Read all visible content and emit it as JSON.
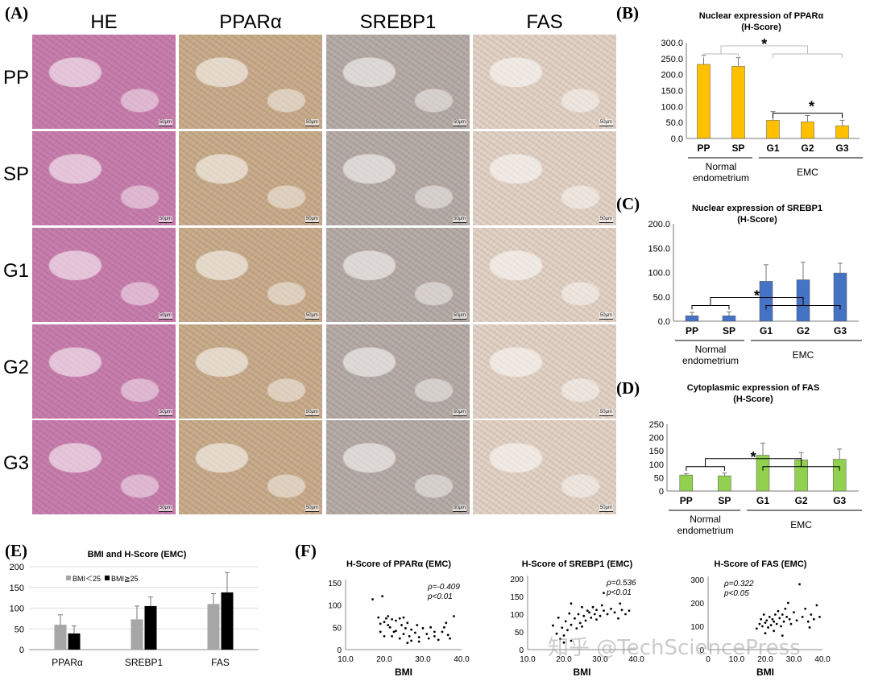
{
  "panelA": {
    "letter": "(A)",
    "columns": [
      "HE",
      "PPARα",
      "SREBP1",
      "FAS"
    ],
    "rows": [
      "PP",
      "SP",
      "G1",
      "G2",
      "G3"
    ],
    "scale_label": "50μm",
    "colors": {
      "HE": "#c97fae",
      "PPARα": "#c9ad8c",
      "SREBP1": "#b7aca7",
      "FAS": "#e3d3c6"
    }
  },
  "chart_data": [
    {
      "letter": "(B)",
      "type": "bar",
      "title": "Nuclear expression of PPARα",
      "subtitle": "(H-Score)",
      "categories": [
        "PP",
        "SP",
        "G1",
        "G2",
        "G3"
      ],
      "values": [
        232,
        226,
        57,
        52,
        40
      ],
      "errors": [
        28,
        27,
        27,
        20,
        17
      ],
      "ylim": [
        0,
        300
      ],
      "yticks": [
        "0.0",
        "50.0",
        "100.0",
        "150.0",
        "200.0",
        "250.0",
        "300.0"
      ],
      "color": "#ffc000",
      "groups": [
        {
          "label": "Normal endometrium",
          "label_lines": [
            "Normal",
            "endometrium"
          ]
        },
        {
          "label": "EMC",
          "label_lines": [
            "EMC"
          ]
        }
      ],
      "significance": "*"
    },
    {
      "letter": "(C)",
      "type": "bar",
      "title": "Nuclear expression of SREBP1",
      "subtitle": "(H-Score)",
      "categories": [
        "PP",
        "SP",
        "G1",
        "G2",
        "G3"
      ],
      "values": [
        11,
        11,
        82,
        85,
        99
      ],
      "errors": [
        7,
        8,
        34,
        36,
        20
      ],
      "ylim": [
        0,
        200
      ],
      "yticks": [
        "0.0",
        "50.0",
        "100.0",
        "150.0",
        "200.0"
      ],
      "color": "#4472c4",
      "groups": [
        {
          "label": "Normal endometrium",
          "label_lines": [
            "Normal",
            "endometrium"
          ]
        },
        {
          "label": "EMC",
          "label_lines": [
            "EMC"
          ]
        }
      ],
      "significance": "*"
    },
    {
      "letter": "(D)",
      "type": "bar",
      "title": "Cytoplasmic expression of FAS",
      "subtitle": "(H-Score)",
      "categories": [
        "PP",
        "SP",
        "G1",
        "G2",
        "G3"
      ],
      "values": [
        60,
        57,
        134,
        117,
        119
      ],
      "errors": [
        5,
        10,
        45,
        27,
        38
      ],
      "ylim": [
        0,
        250
      ],
      "yticks": [
        "0",
        "50",
        "100",
        "150",
        "200",
        "250"
      ],
      "color": "#92d050",
      "groups": [
        {
          "label": "Normal endometrium",
          "label_lines": [
            "Normal",
            "endometrium"
          ]
        },
        {
          "label": "EMC",
          "label_lines": [
            "EMC"
          ]
        }
      ],
      "significance": "*"
    },
    {
      "letter": "(E)",
      "type": "bar",
      "title": "BMI and H-Score (EMC)",
      "categories": [
        "PPARα",
        "SREBP1",
        "FAS"
      ],
      "series": [
        {
          "name": "BMI＜25",
          "values": [
            60,
            73,
            110
          ],
          "errors": [
            24,
            32,
            25
          ],
          "color": "#a6a6a6"
        },
        {
          "name": "BMI≧25",
          "values": [
            39,
            105,
            138
          ],
          "errors": [
            18,
            22,
            48
          ],
          "color": "#000000"
        }
      ],
      "ylim": [
        0,
        200
      ],
      "yticks": [
        "0",
        "50",
        "100",
        "150",
        "200"
      ],
      "legend": "top-left"
    },
    {
      "letter": "(F)",
      "type": "scatter",
      "title": "H-Score of PPARα (EMC)",
      "xlabel": "BMI",
      "xlim": [
        10,
        40
      ],
      "ylim": [
        0,
        150
      ],
      "xticks": [
        "10.0",
        "20.0",
        "30.0",
        "40.0"
      ],
      "yticks": [
        "0",
        "50",
        "100",
        "150"
      ],
      "stat_lines": [
        "ρ=-0.409",
        "p<0.01"
      ],
      "points": [
        [
          17,
          113
        ],
        [
          19.5,
          120
        ],
        [
          18.5,
          72
        ],
        [
          19,
          58
        ],
        [
          20,
          62
        ],
        [
          20.5,
          70
        ],
        [
          21,
          75
        ],
        [
          21,
          55
        ],
        [
          21.5,
          50
        ],
        [
          22,
          68
        ],
        [
          22.5,
          40
        ],
        [
          23,
          65
        ],
        [
          23,
          42
        ],
        [
          24,
          70
        ],
        [
          24.5,
          55
        ],
        [
          25,
          72
        ],
        [
          25,
          35
        ],
        [
          25.5,
          48
        ],
        [
          26,
          60
        ],
        [
          26.5,
          30
        ],
        [
          27,
          45
        ],
        [
          27,
          20
        ],
        [
          28,
          38
        ],
        [
          28.5,
          55
        ],
        [
          29,
          28
        ],
        [
          30,
          48
        ],
        [
          31,
          35
        ],
        [
          31.5,
          25
        ],
        [
          32,
          50
        ],
        [
          33,
          30
        ],
        [
          34,
          22
        ],
        [
          35,
          40
        ],
        [
          35.5,
          50
        ],
        [
          36,
          60
        ],
        [
          36.5,
          33
        ],
        [
          37,
          25
        ],
        [
          38,
          75
        ],
        [
          19,
          40
        ],
        [
          20,
          30
        ],
        [
          22,
          30
        ],
        [
          24,
          25
        ],
        [
          26,
          15
        ],
        [
          29,
          18
        ],
        [
          33,
          40
        ]
      ]
    },
    {
      "type": "scatter",
      "title": "H-Score of SREBP1 (EMC)",
      "xlabel": "BMI",
      "xlim": [
        10,
        40
      ],
      "ylim": [
        0,
        200
      ],
      "xticks": [
        "10.0",
        "20.0",
        "30.0",
        "40.0"
      ],
      "yticks": [
        "0",
        "50",
        "100",
        "150",
        "200"
      ],
      "stat_lines": [
        "ρ=0.536",
        "p<0.01"
      ],
      "points": [
        [
          17,
          68
        ],
        [
          18,
          45
        ],
        [
          18.5,
          90
        ],
        [
          19,
          30
        ],
        [
          19.5,
          62
        ],
        [
          20,
          40
        ],
        [
          20.5,
          80
        ],
        [
          21,
          55
        ],
        [
          21.5,
          102
        ],
        [
          22,
          70
        ],
        [
          22,
          130
        ],
        [
          23,
          88
        ],
        [
          23.5,
          60
        ],
        [
          24,
          100
        ],
        [
          24.5,
          75
        ],
        [
          25,
          120
        ],
        [
          25.5,
          95
        ],
        [
          26,
          82
        ],
        [
          26.5,
          110
        ],
        [
          27,
          105
        ],
        [
          27.5,
          90
        ],
        [
          28,
          120
        ],
        [
          28.5,
          100
        ],
        [
          29,
          112
        ],
        [
          30,
          95
        ],
        [
          30.5,
          125
        ],
        [
          31,
          110
        ],
        [
          32,
          100
        ],
        [
          33,
          115
        ],
        [
          34,
          105
        ],
        [
          35,
          88
        ],
        [
          35.5,
          130
        ],
        [
          36,
          112
        ],
        [
          37,
          100
        ],
        [
          38,
          110
        ],
        [
          31,
          160
        ],
        [
          20,
          20
        ],
        [
          22,
          25
        ],
        [
          25,
          65
        ],
        [
          29,
          85
        ]
      ]
    },
    {
      "type": "scatter",
      "title": "H-Score of FAS (EMC)",
      "xlabel": "BMI",
      "xlim": [
        0,
        40
      ],
      "ylim": [
        0,
        300
      ],
      "xticks": [
        "0",
        "10.0",
        "20.0",
        "30.0",
        "40.0"
      ],
      "yticks": [
        "0",
        "100",
        "200",
        "300"
      ],
      "stat_lines": [
        "ρ=0.322",
        "p<0.05"
      ],
      "points": [
        [
          17,
          90
        ],
        [
          18,
          110
        ],
        [
          18.5,
          130
        ],
        [
          19,
          100
        ],
        [
          19.5,
          150
        ],
        [
          20,
          115
        ],
        [
          20.5,
          125
        ],
        [
          21,
          95
        ],
        [
          21.5,
          140
        ],
        [
          22,
          105
        ],
        [
          22.5,
          130
        ],
        [
          23,
          120
        ],
        [
          23.5,
          150
        ],
        [
          24,
          110
        ],
        [
          24.5,
          165
        ],
        [
          25,
          135
        ],
        [
          25.5,
          100
        ],
        [
          26,
          150
        ],
        [
          26.5,
          120
        ],
        [
          27,
          175
        ],
        [
          27.5,
          140
        ],
        [
          28,
          200
        ],
        [
          28.5,
          130
        ],
        [
          29,
          110
        ],
        [
          30,
          160
        ],
        [
          31,
          125
        ],
        [
          32,
          280
        ],
        [
          33,
          140
        ],
        [
          34,
          175
        ],
        [
          35,
          120
        ],
        [
          35.5,
          95
        ],
        [
          36,
          150
        ],
        [
          37,
          130
        ],
        [
          38,
          190
        ],
        [
          39,
          140
        ],
        [
          20,
          70
        ],
        [
          23,
          80
        ],
        [
          26,
          60
        ]
      ]
    }
  ],
  "watermark": "知乎 @TechSciencePress"
}
